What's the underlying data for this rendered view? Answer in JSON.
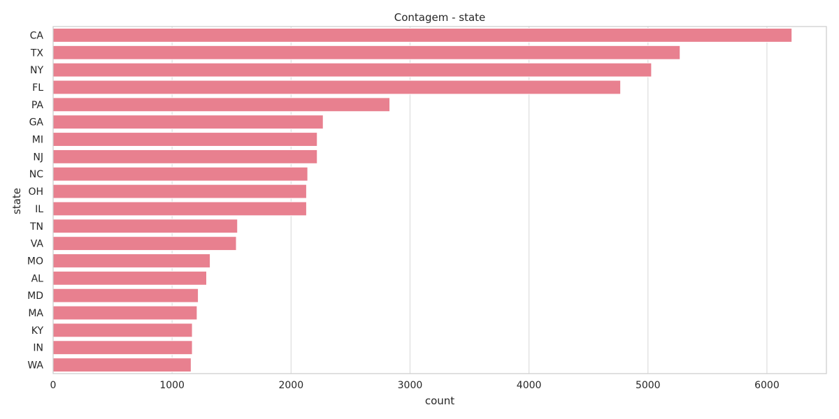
{
  "chart_data": {
    "type": "bar",
    "orientation": "horizontal",
    "title": "Contagem - state",
    "xlabel": "count",
    "ylabel": "state",
    "categories": [
      "CA",
      "TX",
      "NY",
      "FL",
      "PA",
      "GA",
      "MI",
      "NJ",
      "NC",
      "OH",
      "IL",
      "TN",
      "VA",
      "MO",
      "AL",
      "MD",
      "MA",
      "KY",
      "IN",
      "WA"
    ],
    "values": [
      6210,
      5270,
      5030,
      4770,
      2830,
      2270,
      2220,
      2220,
      2140,
      2130,
      2130,
      1550,
      1540,
      1320,
      1290,
      1220,
      1210,
      1170,
      1170,
      1160
    ],
    "xlim": [
      0,
      6500
    ],
    "xticks": [
      0,
      1000,
      2000,
      3000,
      4000,
      5000,
      6000
    ],
    "grid": "vertical",
    "colors": {
      "bar": "#e8808f",
      "bar_edge": "#ffffff",
      "grid": "#dddddd",
      "spine": "#cccccc",
      "text": "#262626"
    }
  }
}
